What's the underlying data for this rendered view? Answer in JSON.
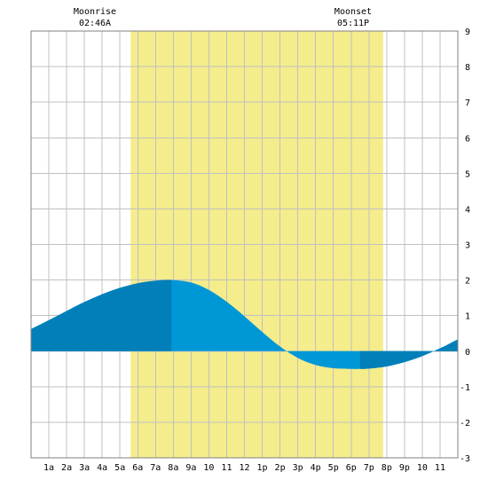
{
  "annotations": {
    "moonrise_label": "Moonrise",
    "moonrise_time": "02:46A",
    "moonset_label": "Moonset",
    "moonset_time": "05:11P"
  },
  "chart_data": {
    "type": "area",
    "title": "",
    "xlabel": "",
    "ylabel": "",
    "x_unit": "hour of day",
    "xlim": [
      0,
      24
    ],
    "ylim": [
      -3,
      9
    ],
    "yticks": [
      -3,
      -2,
      -1,
      0,
      1,
      2,
      3,
      4,
      5,
      6,
      7,
      8,
      9
    ],
    "xtick_labels": [
      "1a",
      "2a",
      "3a",
      "4a",
      "5a",
      "6a",
      "7a",
      "8a",
      "9a",
      "10",
      "11",
      "12",
      "1p",
      "2p",
      "3p",
      "4p",
      "5p",
      "6p",
      "7p",
      "8p",
      "9p",
      "10",
      "11"
    ],
    "grid": true,
    "daylight": {
      "start": 5.6,
      "end": 19.8,
      "color": "#f5ec8c"
    },
    "moonrise_hour": 2.77,
    "moonset_hour": 17.18,
    "tide_extremes": [
      {
        "hour": 7.9,
        "height": 2.0,
        "type": "high"
      },
      {
        "hour": 18.5,
        "height": -0.5,
        "type": "low"
      }
    ],
    "series": [
      {
        "x": [
          0,
          1,
          2,
          3,
          4,
          5,
          6,
          7,
          7.9,
          9,
          10,
          11,
          12,
          13,
          14,
          15,
          16,
          17,
          18,
          18.5,
          19,
          20,
          21,
          22,
          23,
          24
        ],
        "values": [
          0.62,
          0.87,
          1.13,
          1.38,
          1.6,
          1.78,
          1.91,
          1.98,
          2.0,
          1.93,
          1.72,
          1.39,
          0.98,
          0.54,
          0.13,
          -0.19,
          -0.39,
          -0.48,
          -0.5,
          -0.5,
          -0.49,
          -0.43,
          -0.31,
          -0.14,
          0.08,
          0.33
        ]
      }
    ],
    "colors": {
      "tide": "#0097d7",
      "tide_shade": "#007fb8"
    },
    "shade_ranges": [
      [
        0,
        7.9
      ],
      [
        18.5,
        24
      ]
    ]
  }
}
